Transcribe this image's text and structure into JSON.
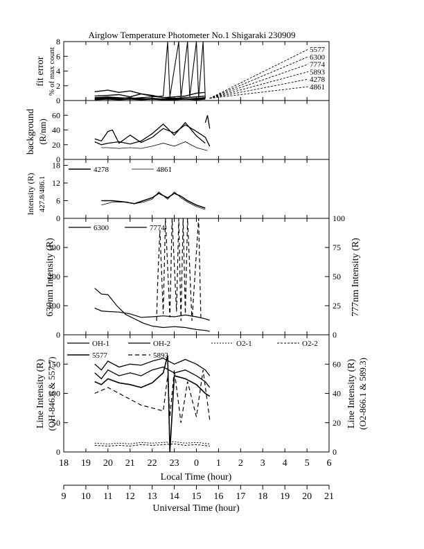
{
  "title": "Airglow Temperature Photometer No.1  Shigaraki  230909",
  "x_axis": {
    "label": "Local Time (hour)",
    "ticks": [
      "18",
      "19",
      "20",
      "21",
      "22",
      "23",
      "0",
      "1",
      "2",
      "3",
      "4",
      "5",
      "6"
    ],
    "range": [
      18,
      30
    ]
  },
  "ut_axis": {
    "label": "Universal Time (hour)",
    "ticks": [
      "9",
      "10",
      "11",
      "12",
      "13",
      "14",
      "15",
      "16",
      "17",
      "18",
      "19",
      "20",
      "21"
    ],
    "range": [
      9,
      21
    ]
  },
  "panels": {
    "fit": {
      "ylabel1": "fit error",
      "ylabel2": "% of max count",
      "ylim": [
        0,
        8
      ],
      "ticks": [
        "0",
        "2",
        "4",
        "6",
        "8"
      ],
      "legend": [
        "5577",
        "6300",
        "7774",
        "5893",
        "4278",
        "4861"
      ]
    },
    "bg": {
      "ylabel1": "background",
      "ylabel2": "(R/nm)",
      "ylim": [
        0,
        80
      ],
      "ticks": [
        "0",
        "20",
        "40",
        "60"
      ]
    },
    "blue": {
      "ylabel1": "Intensity (R)",
      "ylabel2": "427.8/486.1",
      "ylim": [
        0,
        20
      ],
      "ticks": [
        "0",
        "6",
        "12",
        "18"
      ],
      "legend": [
        "4278",
        "4861"
      ]
    },
    "red": {
      "ylabel_left": "630nm Intensity (R)",
      "ylabel_right": "777nm Intensity (R)",
      "ylim_left": [
        0,
        400
      ],
      "ylim_right": [
        0,
        100
      ],
      "ticks_left": [
        "0",
        "100",
        "200",
        "300"
      ],
      "ticks_right": [
        "0",
        "25",
        "50",
        "75",
        "100"
      ],
      "legend": [
        "6300",
        "7774"
      ]
    },
    "line": {
      "ylabel_left1": "Line Intensity (R)",
      "ylabel_left2": "(OH-846.6 & 557.7)",
      "ylabel_right1": "Line Intensity (R)",
      "ylabel_right2": "(O2-866.1 & 589.3)",
      "ylim_left": [
        0,
        200
      ],
      "ylim_right": [
        0,
        80
      ],
      "ticks_left": [
        "0",
        "50",
        "100",
        "150"
      ],
      "ticks_right": [
        "0",
        "20",
        "40",
        "60"
      ],
      "legend_row1": [
        "OH-1",
        "OH-2",
        "O2-1",
        "O2-2"
      ],
      "legend_row2": [
        "5577",
        "5893"
      ]
    }
  },
  "chart_data": [
    {
      "type": "line",
      "title": "fit error % of max count",
      "ylim": [
        0,
        8
      ],
      "series": [
        {
          "name": "5577",
          "x": [
            19.4,
            20.0,
            20.5,
            21.0,
            21.5,
            22.0,
            22.5,
            23.0,
            23.5,
            24.0,
            24.4
          ],
          "y": [
            1.2,
            1.4,
            1.1,
            1.3,
            0.9,
            0.7,
            0.4,
            0.5,
            0.6,
            1.0,
            1.1
          ]
        },
        {
          "name": "6300",
          "x": [
            19.4,
            20.0,
            20.5,
            21.0,
            21.5,
            22.0,
            22.5,
            23.0,
            23.5,
            24.0,
            24.4
          ],
          "y": [
            0.6,
            0.7,
            0.8,
            0.5,
            0.9,
            0.6,
            0.4,
            0.3,
            0.4,
            0.5,
            0.6
          ]
        },
        {
          "name": "7774",
          "x": [
            19.4,
            20.0,
            20.5,
            21.0,
            21.5,
            22.0,
            22.5,
            22.7,
            22.8,
            23.2,
            23.3,
            23.6,
            23.7,
            24.0,
            24.1,
            24.3,
            24.4
          ],
          "y": [
            0.4,
            0.5,
            0.4,
            0.3,
            0.4,
            0.5,
            0.6,
            8.0,
            0.5,
            8.0,
            0.4,
            8.0,
            0.5,
            8.0,
            0.4,
            8.0,
            0.3
          ]
        },
        {
          "name": "5893",
          "x": [
            19.4,
            20.0,
            20.5,
            21.0,
            21.5,
            22.0,
            22.5,
            23.0,
            23.5,
            24.0,
            24.4
          ],
          "y": [
            0.3,
            0.4,
            0.3,
            0.4,
            0.2,
            0.3,
            0.2,
            0.3,
            0.2,
            0.3,
            0.4
          ]
        },
        {
          "name": "4278",
          "x": [
            19.4,
            20.0,
            20.5,
            21.0,
            21.5,
            22.0,
            22.5,
            23.0,
            23.5,
            24.0,
            24.4
          ],
          "y": [
            0.2,
            0.3,
            0.2,
            0.2,
            0.3,
            0.2,
            0.2,
            0.2,
            0.2,
            0.2,
            0.3
          ]
        },
        {
          "name": "4861",
          "x": [
            19.4,
            20.0,
            20.5,
            21.0,
            21.5,
            22.0,
            22.5,
            23.0,
            23.5,
            24.0,
            24.4
          ],
          "y": [
            0.1,
            0.2,
            0.1,
            0.2,
            0.1,
            0.2,
            0.1,
            0.1,
            0.2,
            0.1,
            0.2
          ]
        }
      ]
    },
    {
      "type": "line",
      "title": "background (R/nm)",
      "ylim": [
        0,
        80
      ],
      "series": [
        {
          "name": "",
          "x": [
            19.4,
            19.7,
            20.0,
            20.2,
            20.5,
            21.0,
            21.5,
            22.0,
            22.5,
            23.0,
            23.5,
            24.0,
            24.4,
            24.6
          ],
          "y": [
            28,
            25,
            38,
            40,
            22,
            33,
            23,
            30,
            42,
            36,
            47,
            38,
            30,
            18
          ]
        },
        {
          "name": "",
          "x": [
            19.4,
            19.7,
            20.0,
            20.5,
            21.0,
            21.5,
            22.0,
            22.5,
            23.0,
            23.5,
            24.0,
            24.4
          ],
          "y": [
            24,
            20,
            22,
            24,
            21,
            25,
            35,
            48,
            33,
            50,
            32,
            22
          ]
        },
        {
          "name": "",
          "x": [
            19.7,
            20.0,
            20.5,
            21.0,
            21.5,
            22.0,
            22.5,
            23.0,
            23.5,
            24.0,
            24.5
          ],
          "y": [
            16,
            16,
            15,
            16,
            15,
            18,
            22,
            18,
            24,
            16,
            12
          ]
        },
        {
          "name": "",
          "x": [
            24.4,
            24.5,
            24.6
          ],
          "y": [
            50,
            60,
            42
          ]
        }
      ]
    },
    {
      "type": "line",
      "title": "Intensity (R) 427.8/486.1",
      "ylim": [
        0,
        20
      ],
      "series": [
        {
          "name": "4278",
          "x": [
            19.7,
            20.2,
            20.8,
            21.2,
            21.6,
            22.0,
            22.3,
            22.7,
            23.0,
            23.3,
            23.6,
            24.0,
            24.4
          ],
          "y": [
            6.0,
            6.0,
            5.5,
            5.0,
            6.0,
            7.0,
            8.5,
            7.0,
            8.5,
            7.5,
            6.0,
            4.5,
            3.5
          ]
        },
        {
          "name": "4861",
          "x": [
            19.7,
            20.2,
            20.8,
            21.2,
            21.6,
            22.0,
            22.3,
            22.7,
            23.0,
            23.3,
            23.6,
            24.0,
            24.4
          ],
          "y": [
            4.5,
            5.5,
            5.5,
            5.0,
            5.5,
            6.5,
            9.0,
            6.5,
            9.0,
            7.0,
            5.5,
            4.0,
            3.0
          ]
        }
      ]
    },
    {
      "type": "line",
      "title": "630nm / 777nm Intensity (R)",
      "ylim": [
        0,
        400
      ],
      "y2lim": [
        0,
        100
      ],
      "series": [
        {
          "name": "6300",
          "axis": "left",
          "x": [
            19.4,
            19.7,
            20.0,
            20.4,
            20.8,
            21.2,
            21.6,
            22.0,
            22.5,
            23.0,
            23.5,
            24.0,
            24.4,
            24.6
          ],
          "y": [
            160,
            140,
            138,
            100,
            70,
            55,
            40,
            30,
            25,
            28,
            25,
            18,
            15,
            12
          ]
        },
        {
          "name": "",
          "axis": "left",
          "x": [
            19.4,
            19.7,
            20.0,
            20.5,
            21.0,
            21.5,
            22.0,
            22.5,
            23.0,
            23.5,
            24.0,
            24.4,
            24.6
          ],
          "y": [
            92,
            82,
            80,
            78,
            72,
            60,
            62,
            65,
            62,
            68,
            62,
            55,
            50
          ]
        },
        {
          "name": "7774",
          "axis": "right",
          "x": [
            22.2,
            22.25,
            22.35,
            22.5,
            22.6,
            22.8,
            22.9,
            23.1,
            23.2,
            23.3,
            23.4,
            23.5,
            23.6,
            23.8,
            24.1,
            24.2
          ],
          "y": [
            12,
            45,
            90,
            18,
            100,
            15,
            100,
            20,
            100,
            12,
            100,
            18,
            100,
            12,
            100,
            15
          ]
        }
      ]
    },
    {
      "type": "line",
      "title": "Line Intensity (R)",
      "ylim": [
        0,
        200
      ],
      "y2lim": [
        0,
        80
      ],
      "series": [
        {
          "name": "OH-1",
          "axis": "left",
          "x": [
            19.4,
            19.7,
            20.0,
            20.5,
            21.0,
            21.5,
            22.0,
            22.5,
            23.0,
            23.5,
            24.0,
            24.4,
            24.6
          ],
          "y": [
            150,
            140,
            155,
            145,
            150,
            148,
            155,
            160,
            150,
            158,
            150,
            140,
            130
          ]
        },
        {
          "name": "OH-2",
          "axis": "left",
          "x": [
            19.4,
            19.7,
            20.0,
            20.5,
            21.0,
            21.5,
            22.0,
            22.5,
            23.0,
            23.5,
            24.0,
            24.4,
            24.6
          ],
          "y": [
            135,
            125,
            140,
            130,
            135,
            130,
            140,
            145,
            135,
            140,
            130,
            120,
            110
          ]
        },
        {
          "name": "O2-1",
          "axis": "right",
          "x": [
            19.4,
            20.0,
            20.5,
            21.0,
            21.5,
            22.0,
            22.5,
            23.0,
            23.5,
            24.0,
            24.6
          ],
          "y": [
            6,
            5.5,
            6,
            5.5,
            6.5,
            6,
            6.5,
            7,
            6,
            6.5,
            5.5
          ]
        },
        {
          "name": "O2-2",
          "axis": "right",
          "x": [
            19.4,
            20.0,
            20.5,
            21.0,
            21.5,
            22.0,
            22.5,
            23.0,
            23.5,
            24.0,
            24.6
          ],
          "y": [
            4.5,
            4,
            4.5,
            4,
            5,
            4.5,
            5,
            5.5,
            4.5,
            5,
            4
          ]
        },
        {
          "name": "5577",
          "axis": "left",
          "x": [
            19.4,
            19.7,
            20.0,
            20.5,
            21.0,
            21.5,
            22.0,
            22.5,
            22.7,
            22.8,
            23.0,
            23.5,
            24.0,
            24.4,
            24.6
          ],
          "y": [
            120,
            115,
            125,
            118,
            115,
            110,
            118,
            135,
            165,
            0,
            130,
            125,
            115,
            100,
            95
          ]
        },
        {
          "name": "5893",
          "axis": "left",
          "x": [
            19.4,
            19.7,
            20.0,
            20.5,
            21.0,
            21.5,
            22.0,
            22.5,
            22.7,
            22.8,
            23.0,
            23.3,
            23.6,
            24.0,
            24.3,
            24.6
          ],
          "y": [
            100,
            105,
            110,
            100,
            90,
            80,
            75,
            70,
            130,
            60,
            140,
            50,
            120,
            60,
            140,
            55
          ]
        }
      ]
    }
  ]
}
